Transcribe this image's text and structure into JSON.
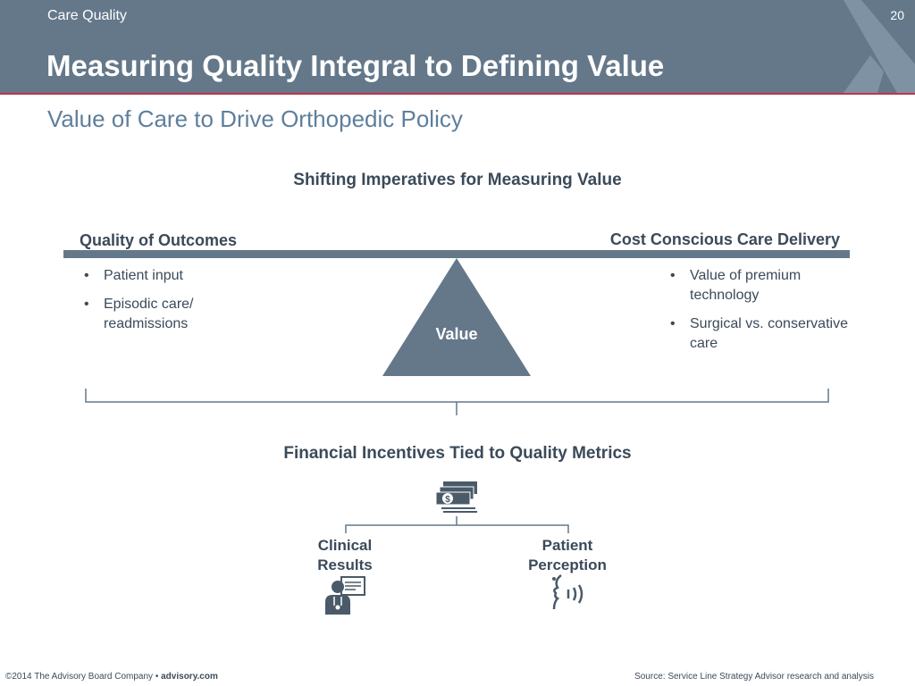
{
  "header": {
    "section": "Care Quality",
    "page_number": "20",
    "title": "Measuring Quality Integral to Defining Value"
  },
  "subtitle": "Value of Care to Drive Orthopedic Policy",
  "diagram": {
    "heading": "Shifting Imperatives for Measuring Value",
    "left": {
      "heading": "Quality of Outcomes",
      "bullets": [
        "Patient input",
        "Episodic care/ readmissions"
      ]
    },
    "right": {
      "heading": "Cost Conscious Care Delivery",
      "bullets": [
        "Value of premium technology",
        "Surgical vs. conservative care"
      ]
    },
    "fulcrum_label": "Value"
  },
  "incentives": {
    "heading": "Financial Incentives Tied to Quality Metrics",
    "money_icon": "money-stack-icon",
    "metrics": [
      {
        "label_line1": "Clinical",
        "label_line2": "Results",
        "icon": "doctor-chart-icon"
      },
      {
        "label_line1": "Patient",
        "label_line2": "Perception",
        "icon": "speaking-head-icon"
      }
    ]
  },
  "footer": {
    "copyright": "©2014 The Advisory Board Company • ",
    "site": "advisory.com",
    "source": "Source: Service Line Strategy Advisor research and analysis"
  },
  "colors": {
    "header_bg": "#64788a",
    "accent_stripe": "#c0334a",
    "subtitle": "#5e7f9c",
    "text": "#3b4a59"
  }
}
